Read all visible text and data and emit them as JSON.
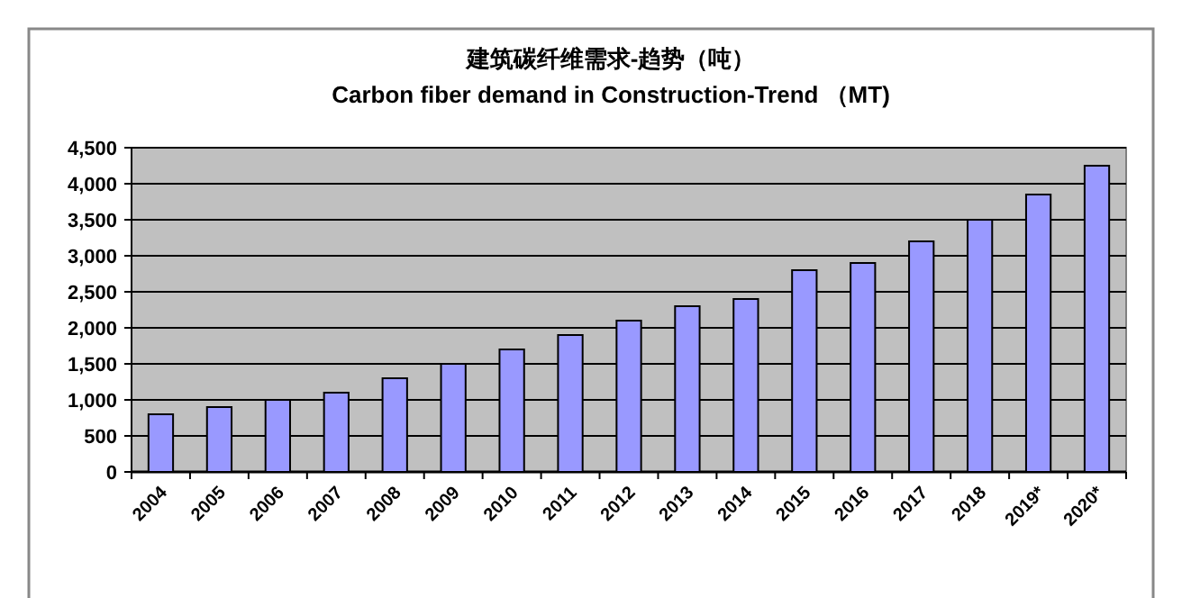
{
  "chart_data": {
    "type": "bar",
    "title": "建筑碳纤维需求-趋势（吨）",
    "subtitle": "Carbon fiber demand in Construction-Trend （MT)",
    "categories": [
      "2004",
      "2005",
      "2006",
      "2007",
      "2008",
      "2009",
      "2010",
      "2011",
      "2012",
      "2013",
      "2014",
      "2015",
      "2016",
      "2017",
      "2018",
      "2019*",
      "2020*"
    ],
    "values": [
      800,
      900,
      1000,
      1100,
      1300,
      1500,
      1700,
      1900,
      2100,
      2300,
      2400,
      2800,
      2900,
      3200,
      3500,
      3850,
      4250
    ],
    "color": "#9999ff",
    "ylim": [
      0,
      4500
    ],
    "yticks": [
      0,
      500,
      {
        "value": 1000,
        "label": "1,000"
      },
      {
        "value": 1500,
        "label": "1,500"
      },
      {
        "value": 2000,
        "label": "2,000"
      },
      {
        "value": 2500,
        "label": "2,500"
      },
      {
        "value": 3000,
        "label": "3,000"
      },
      {
        "value": 3500,
        "label": "3,500"
      },
      {
        "value": 4000,
        "label": "4,000"
      },
      {
        "value": 4500,
        "label": "4,500"
      }
    ],
    "grid": "y"
  }
}
